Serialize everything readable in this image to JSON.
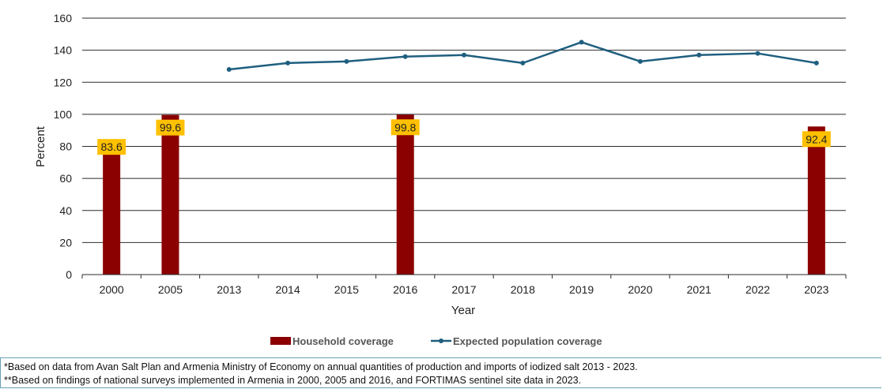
{
  "chart_data": {
    "type": "bar+line",
    "categories": [
      "2000",
      "2005",
      "2013",
      "2014",
      "2015",
      "2016",
      "2017",
      "2018",
      "2019",
      "2020",
      "2021",
      "2022",
      "2023"
    ],
    "series": [
      {
        "name": "Household coverage",
        "type": "bar",
        "color": "#8B0000",
        "values": [
          83.6,
          99.6,
          null,
          null,
          null,
          99.8,
          null,
          null,
          null,
          null,
          null,
          null,
          92.4
        ],
        "labels": [
          "83.6",
          "99.6",
          "",
          "",
          "",
          "99.8",
          "",
          "",
          "",
          "",
          "",
          "",
          "92.4"
        ]
      },
      {
        "name": "Expected population coverage",
        "type": "line",
        "color": "#1f5f7f",
        "values": [
          null,
          null,
          128,
          132,
          133,
          136,
          137,
          132,
          145,
          133,
          137,
          138,
          132
        ]
      }
    ],
    "xlabel": "Year",
    "ylabel": "Percent",
    "ylim": [
      0,
      160
    ],
    "yticks": [
      0,
      20,
      40,
      60,
      80,
      100,
      120,
      140,
      160
    ],
    "grid": true,
    "legend": "bottom-center",
    "label_bg": "#FFC000"
  },
  "notes": [
    "*Based on data from Avan Salt Plan and Armenia Ministry of Economy on annual quantities of production and imports of iodized salt 2013 - 2023.",
    "**Based on findings of national surveys implemented in Armenia in 2000, 2005 and 2016, and FORTIMAS sentinel site data in 2023."
  ]
}
